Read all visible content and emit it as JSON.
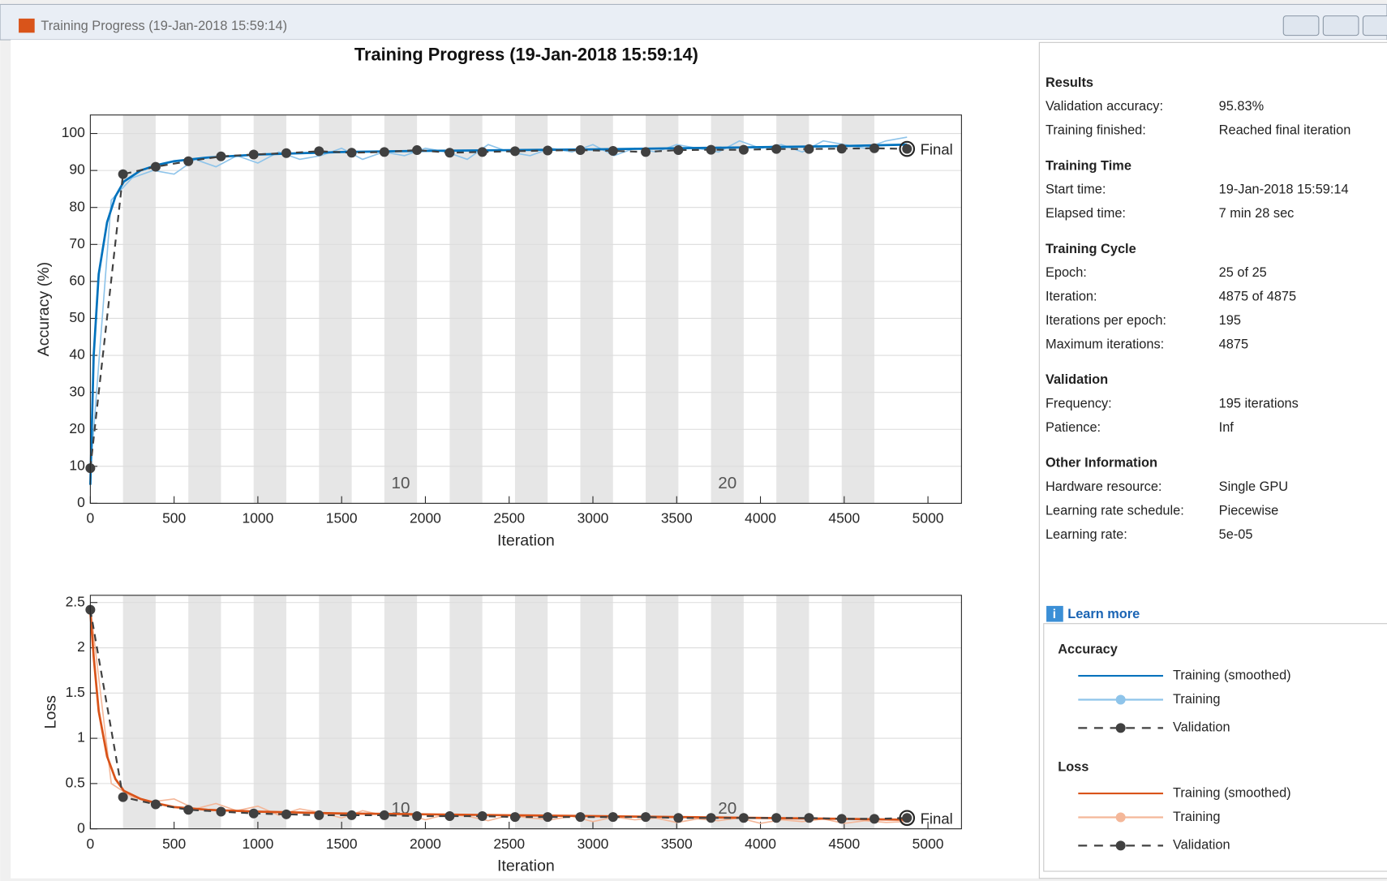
{
  "window": {
    "title": "Training Progress (19-Jan-2018 15:59:14)"
  },
  "chart_data": [
    {
      "type": "line",
      "title": "Training Progress (19-Jan-2018 15:59:14)",
      "legend_title": "Accuracy",
      "xlabel": "Iteration",
      "ylabel": "Accuracy (%)",
      "final_label": "Final",
      "xlim": [
        0,
        5200
      ],
      "ylim": [
        0,
        105
      ],
      "xticks": [
        0,
        500,
        1000,
        1500,
        2000,
        2500,
        3000,
        3500,
        4000,
        4500,
        5000
      ],
      "yticks": [
        0,
        10,
        20,
        30,
        40,
        50,
        60,
        70,
        80,
        90,
        100
      ],
      "grid": true,
      "epoch_labels": [
        10,
        20
      ],
      "series": [
        {
          "name": "Training (smoothed)",
          "color": "#0072bd",
          "x": [
            0,
            20,
            50,
            100,
            150,
            200,
            300,
            400,
            500,
            700,
            1000,
            1500,
            2000,
            2500,
            3000,
            3500,
            4000,
            4500,
            4875
          ],
          "values": [
            5,
            40,
            62,
            76,
            83,
            87,
            90,
            91.5,
            92.5,
            93.5,
            94.3,
            95,
            95.3,
            95.5,
            95.7,
            96,
            96.3,
            96.6,
            97
          ]
        },
        {
          "name": "Training",
          "color": "#8ec4ea",
          "x": [
            0,
            125,
            250,
            375,
            500,
            625,
            750,
            875,
            1000,
            1125,
            1250,
            1375,
            1500,
            1625,
            1750,
            1875,
            2000,
            2125,
            2250,
            2375,
            2500,
            2625,
            2750,
            2875,
            3000,
            3125,
            3250,
            3375,
            3500,
            3625,
            3750,
            3875,
            4000,
            4125,
            4250,
            4375,
            4500,
            4625,
            4750,
            4875
          ],
          "values": [
            8,
            82,
            88,
            90,
            89,
            93,
            91,
            94,
            92,
            95,
            93,
            94,
            96,
            93,
            95,
            94,
            96,
            95,
            93,
            97,
            95,
            94,
            96,
            95,
            97,
            94,
            96,
            95,
            97,
            96,
            95,
            98,
            96,
            97,
            95,
            98,
            97,
            96,
            98,
            99
          ]
        },
        {
          "name": "Validation",
          "color": "#404040",
          "x": [
            0,
            195,
            390,
            585,
            780,
            975,
            1170,
            1365,
            1560,
            1755,
            1950,
            2145,
            2340,
            2535,
            2730,
            2925,
            3120,
            3315,
            3510,
            3705,
            3900,
            4095,
            4290,
            4485,
            4680,
            4875
          ],
          "values": [
            9.5,
            89,
            91,
            92.5,
            93.8,
            94.3,
            94.7,
            95.2,
            94.8,
            95,
            95.5,
            94.8,
            95,
            95.2,
            95.4,
            95.5,
            95.3,
            95,
            95.5,
            95.6,
            95.6,
            95.8,
            95.8,
            95.9,
            96,
            95.83
          ]
        }
      ]
    },
    {
      "type": "line",
      "legend_title": "Loss",
      "xlabel": "Iteration",
      "ylabel": "Loss",
      "final_label": "Final",
      "xlim": [
        0,
        5200
      ],
      "ylim": [
        0,
        2.58
      ],
      "xticks": [
        0,
        500,
        1000,
        1500,
        2000,
        2500,
        3000,
        3500,
        4000,
        4500,
        5000
      ],
      "yticks": [
        0,
        0.5,
        1,
        1.5,
        2,
        2.5
      ],
      "grid": true,
      "epoch_labels": [
        10,
        20
      ],
      "series": [
        {
          "name": "Training (smoothed)",
          "color": "#d95319",
          "x": [
            0,
            20,
            50,
            100,
            150,
            200,
            300,
            400,
            500,
            700,
            1000,
            1500,
            2000,
            2500,
            3000,
            3500,
            4000,
            4500,
            4875
          ],
          "values": [
            2.4,
            1.9,
            1.3,
            0.8,
            0.55,
            0.42,
            0.33,
            0.28,
            0.24,
            0.21,
            0.19,
            0.17,
            0.16,
            0.15,
            0.14,
            0.13,
            0.12,
            0.11,
            0.1
          ]
        },
        {
          "name": "Training",
          "color": "#f4b799",
          "x": [
            0,
            125,
            250,
            375,
            500,
            625,
            750,
            875,
            1000,
            1125,
            1250,
            1375,
            1500,
            1625,
            1750,
            1875,
            2000,
            2125,
            2250,
            2375,
            2500,
            2625,
            2750,
            2875,
            3000,
            3125,
            3250,
            3375,
            3500,
            3625,
            3750,
            3875,
            4000,
            4125,
            4250,
            4375,
            4500,
            4625,
            4750,
            4875
          ],
          "values": [
            2.45,
            0.5,
            0.35,
            0.3,
            0.33,
            0.22,
            0.28,
            0.2,
            0.25,
            0.15,
            0.22,
            0.18,
            0.12,
            0.2,
            0.15,
            0.17,
            0.1,
            0.16,
            0.14,
            0.09,
            0.15,
            0.12,
            0.1,
            0.14,
            0.08,
            0.13,
            0.1,
            0.12,
            0.07,
            0.11,
            0.09,
            0.12,
            0.06,
            0.1,
            0.08,
            0.11,
            0.06,
            0.09,
            0.07,
            0.08
          ]
        },
        {
          "name": "Validation",
          "color": "#404040",
          "x": [
            0,
            195,
            390,
            585,
            780,
            975,
            1170,
            1365,
            1560,
            1755,
            1950,
            2145,
            2340,
            2535,
            2730,
            2925,
            3120,
            3315,
            3510,
            3705,
            3900,
            4095,
            4290,
            4485,
            4680,
            4875
          ],
          "values": [
            2.42,
            0.35,
            0.27,
            0.21,
            0.19,
            0.17,
            0.16,
            0.15,
            0.15,
            0.15,
            0.14,
            0.14,
            0.14,
            0.13,
            0.13,
            0.13,
            0.13,
            0.13,
            0.12,
            0.12,
            0.12,
            0.12,
            0.12,
            0.11,
            0.11,
            0.12
          ]
        }
      ]
    }
  ],
  "sidebar": {
    "sections": [
      {
        "title": "Results",
        "rows": [
          [
            "Validation accuracy:",
            "95.83%"
          ],
          [
            "Training finished:",
            "Reached final iteration"
          ]
        ]
      },
      {
        "title": "Training Time",
        "rows": [
          [
            "Start time:",
            "19-Jan-2018 15:59:14"
          ],
          [
            "Elapsed time:",
            "7 min 28 sec"
          ]
        ]
      },
      {
        "title": "Training Cycle",
        "rows": [
          [
            "Epoch:",
            "25 of 25"
          ],
          [
            "Iteration:",
            "4875 of 4875"
          ],
          [
            "Iterations per epoch:",
            "195"
          ],
          [
            "Maximum iterations:",
            "4875"
          ]
        ]
      },
      {
        "title": "Validation",
        "rows": [
          [
            "Frequency:",
            "195 iterations"
          ],
          [
            "Patience:",
            "Inf"
          ]
        ]
      },
      {
        "title": "Other Information",
        "rows": [
          [
            "Hardware resource:",
            "Single GPU"
          ],
          [
            "Learning rate schedule:",
            "Piecewise"
          ],
          [
            "Learning rate:",
            "5e-05"
          ]
        ]
      }
    ],
    "learn_more": "Learn more"
  }
}
